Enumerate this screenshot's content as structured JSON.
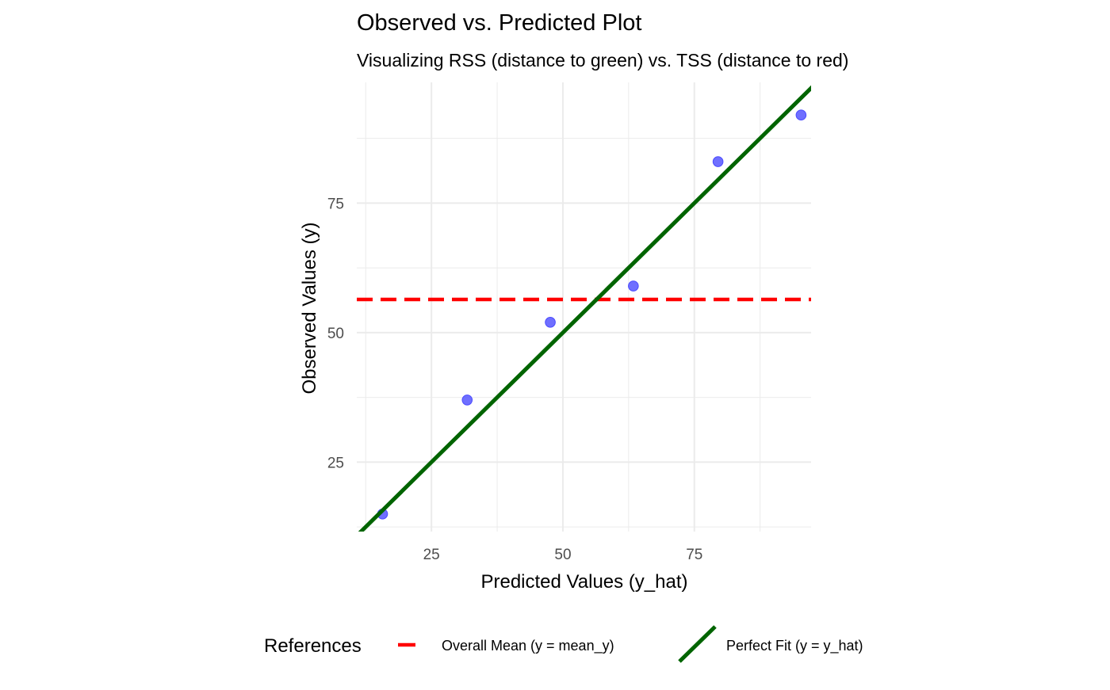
{
  "chart_data": {
    "type": "scatter",
    "title": "Observed vs. Predicted Plot",
    "subtitle": "Visualizing RSS (distance to green) vs. TSS (distance to red)",
    "xlabel": "Predicted Values (y_hat)",
    "ylabel": "Observed Values (y)",
    "xlim": [
      10.8,
      97.2
    ],
    "ylim": [
      11.6,
      98.3
    ],
    "x_ticks": [
      25,
      50,
      75
    ],
    "y_ticks": [
      25,
      50,
      75
    ],
    "grid": true,
    "points": {
      "x": [
        15.7,
        31.8,
        47.6,
        63.4,
        79.5,
        95.3
      ],
      "y": [
        15.0,
        37.0,
        52.0,
        59.0,
        83.0,
        92.0
      ],
      "color": "#4b4bff"
    },
    "reference_lines": [
      {
        "name": "Overall Mean (y = mean_y)",
        "kind": "horizontal",
        "y": 56.4,
        "color": "#ff0000",
        "dash": true
      },
      {
        "name": "Perfect Fit (y = y_hat)",
        "kind": "identity",
        "color": "#006400",
        "dash": false
      }
    ],
    "legend": {
      "title": "References",
      "position": "bottom"
    }
  }
}
